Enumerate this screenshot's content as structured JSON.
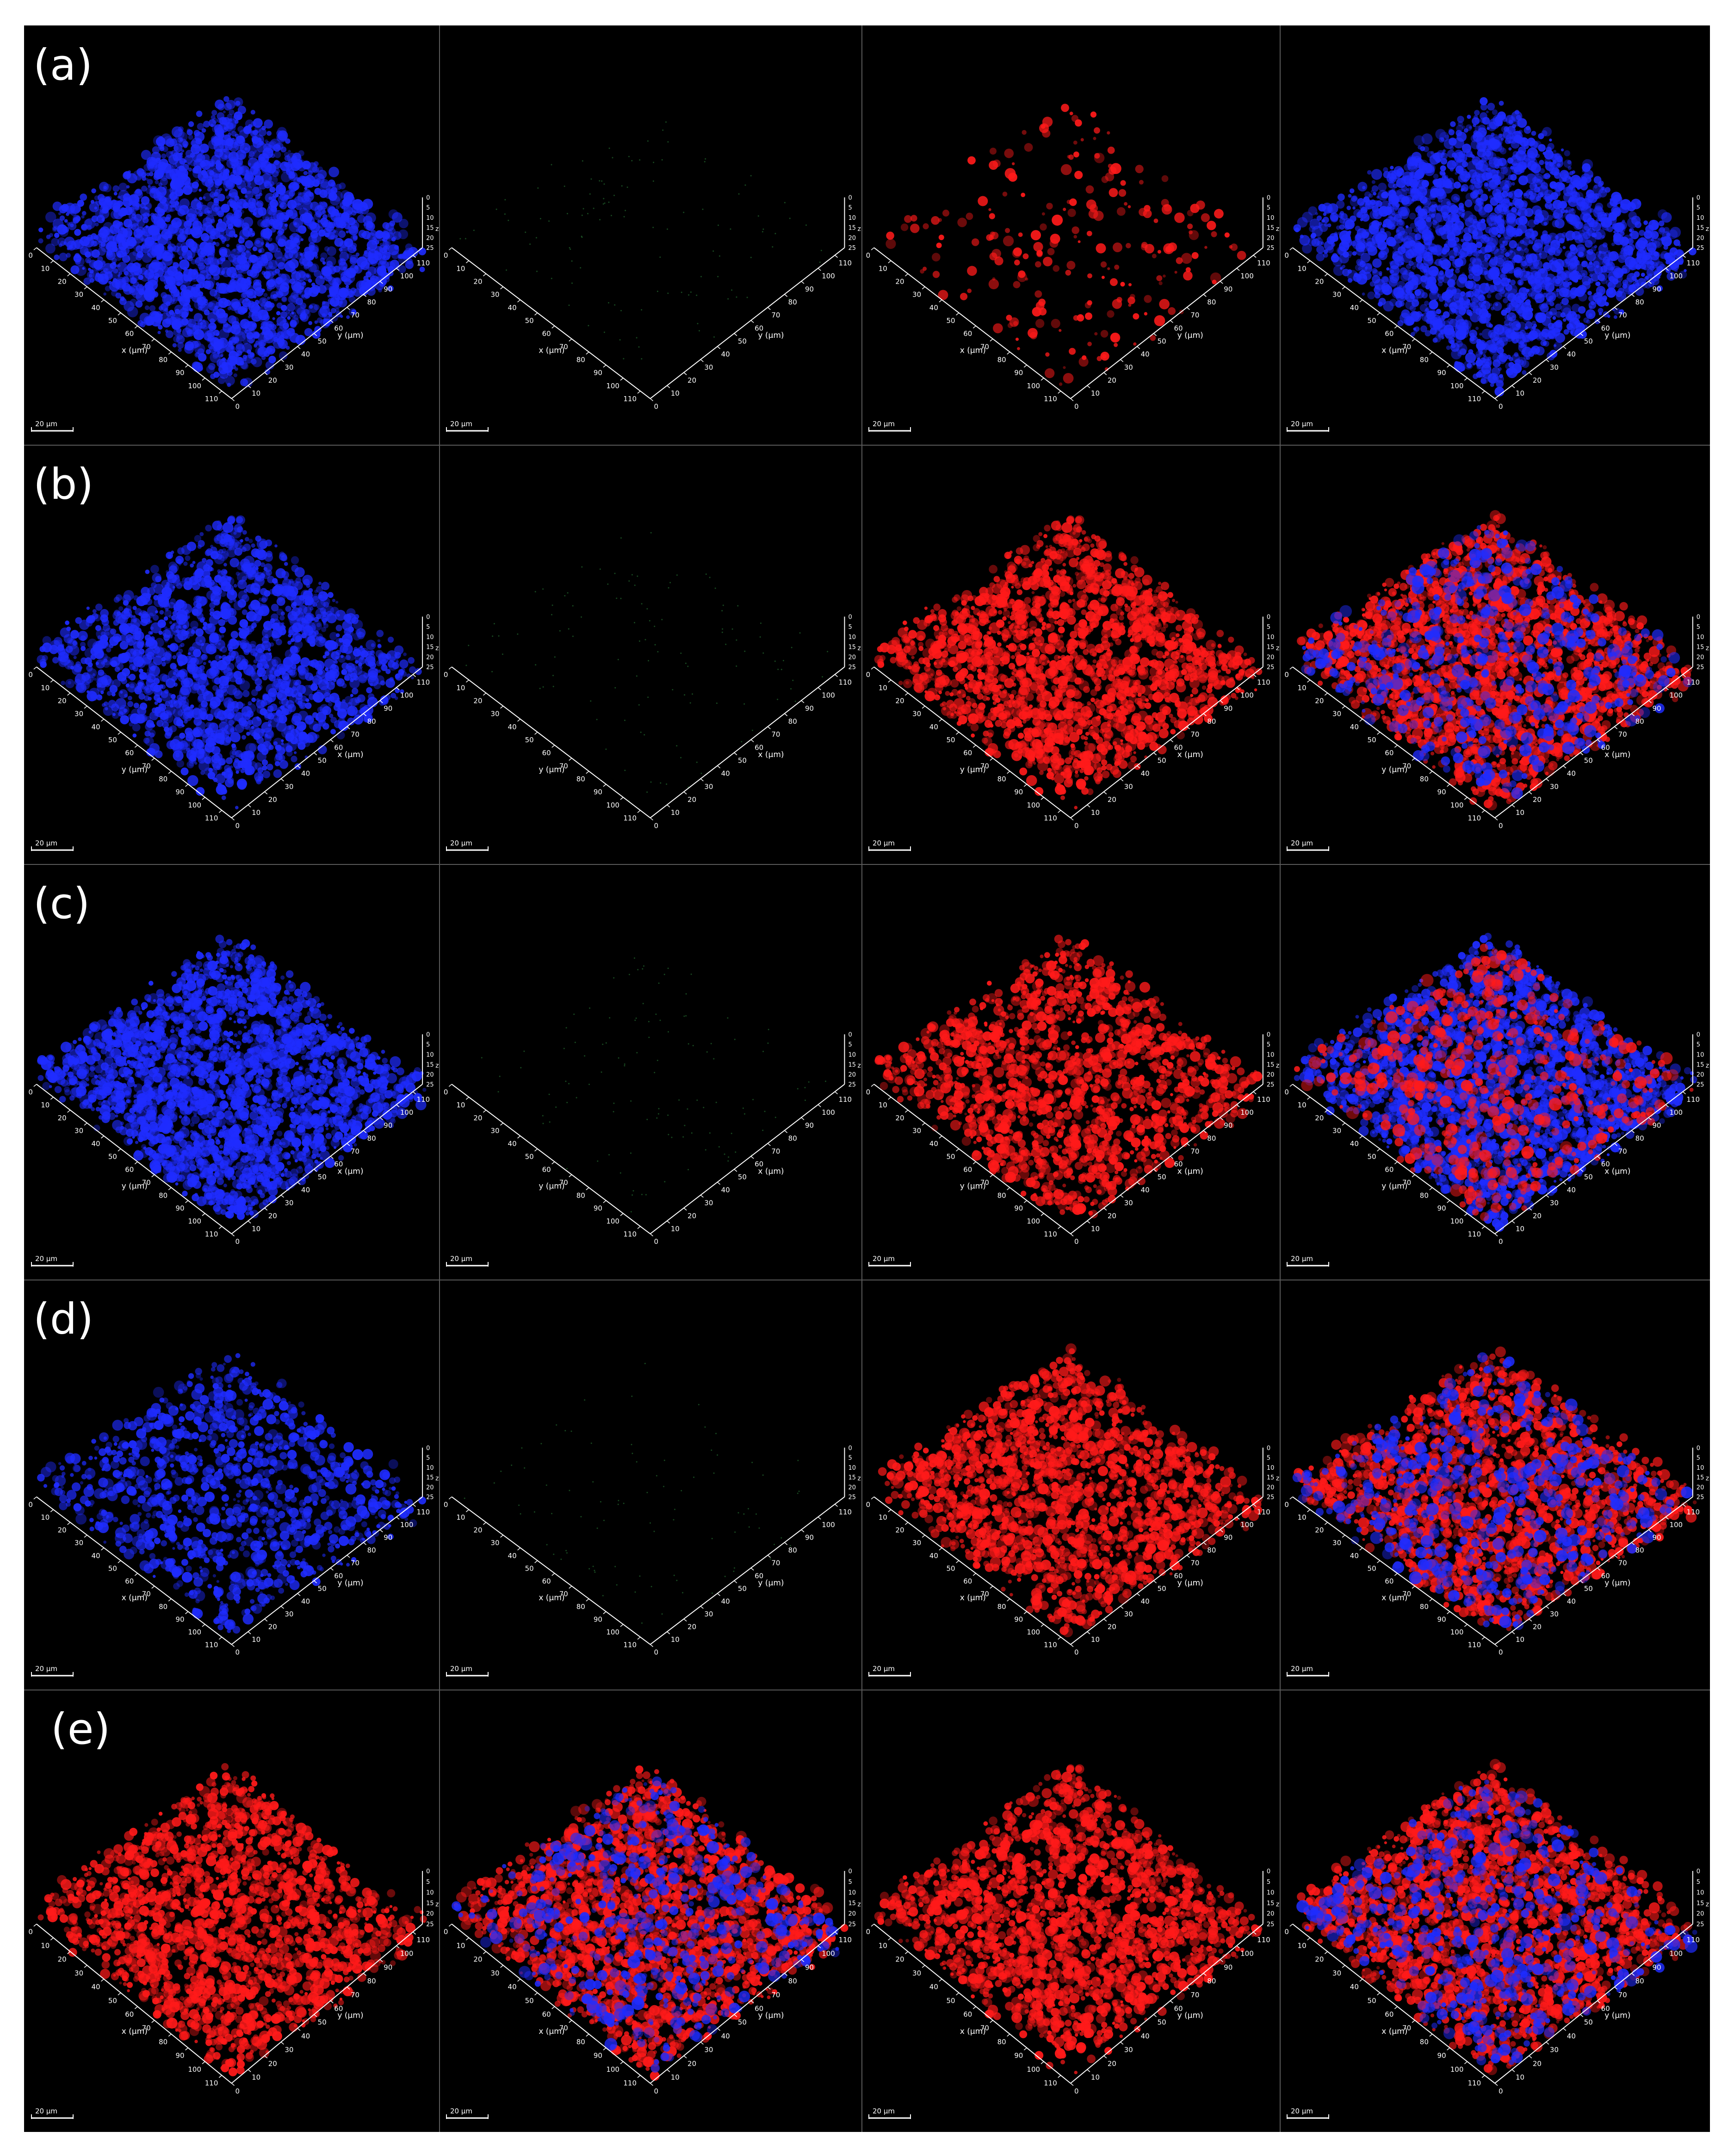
{
  "figure": {
    "row_labels": [
      "(a)",
      "(b)",
      "(c)",
      "(d)",
      "(e)"
    ],
    "axis_labels": {
      "x": "x (μm)",
      "y": "y (μm)",
      "z": "z"
    },
    "scale_bar": "20 μm",
    "xy_ticks": [
      "0",
      "10",
      "20",
      "30",
      "40",
      "50",
      "60",
      "70",
      "80",
      "90",
      "100",
      "110"
    ],
    "z_ticks": [
      "0",
      "5",
      "10",
      "15",
      "20",
      "25"
    ],
    "colors": {
      "background": "#000000",
      "blue": "#1f2cff",
      "red": "#ff1a1a",
      "green": "#2f8f3f",
      "divider": "#5a5a5a",
      "axis": "#ffffff"
    }
  },
  "rows": [
    {
      "label": "(a)",
      "panels": [
        {
          "channel": "blue",
          "density": 0.95,
          "axes": "xy"
        },
        {
          "channel": "green",
          "density": 0.03,
          "axes": "xy"
        },
        {
          "channel": "red",
          "density": 0.08,
          "axes": "xy"
        },
        {
          "channel": "blue",
          "density": 0.95,
          "axes": "xy"
        }
      ]
    },
    {
      "label": "(b)",
      "panels": [
        {
          "channel": "blue",
          "density": 0.75,
          "axes": "yx"
        },
        {
          "channel": "green",
          "density": 0.03,
          "axes": "yx"
        },
        {
          "channel": "red",
          "density": 0.8,
          "axes": "yx"
        },
        {
          "channel": "merge-red",
          "density": 0.85,
          "axes": "yx"
        }
      ]
    },
    {
      "label": "(c)",
      "panels": [
        {
          "channel": "blue",
          "density": 0.98,
          "axes": "yx"
        },
        {
          "channel": "green",
          "density": 0.03,
          "axes": "yx"
        },
        {
          "channel": "red",
          "density": 0.65,
          "axes": "yx"
        },
        {
          "channel": "merge-blue",
          "density": 0.95,
          "axes": "yx"
        }
      ]
    },
    {
      "label": "(d)",
      "panels": [
        {
          "channel": "blue",
          "density": 0.45,
          "axes": "xy"
        },
        {
          "channel": "green",
          "density": 0.02,
          "axes": "xy"
        },
        {
          "channel": "red",
          "density": 0.75,
          "axes": "xy"
        },
        {
          "channel": "merge-red",
          "density": 0.75,
          "axes": "xy"
        }
      ]
    },
    {
      "label": "(e)",
      "panels": [
        {
          "channel": "red",
          "density": 0.8,
          "axes": "xy"
        },
        {
          "channel": "merge-red",
          "density": 0.85,
          "axes": "xy"
        },
        {
          "channel": "red",
          "density": 0.8,
          "axes": "xy"
        },
        {
          "channel": "merge-red",
          "density": 0.85,
          "axes": "xy"
        }
      ]
    }
  ]
}
